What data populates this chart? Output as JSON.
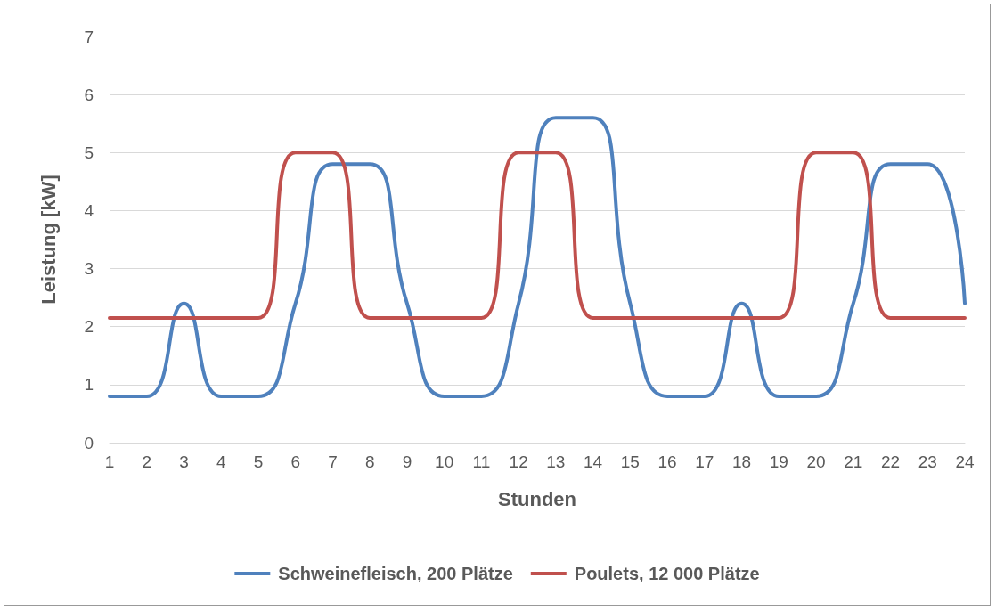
{
  "chart_data": {
    "type": "line",
    "xlabel": "Stunden",
    "ylabel": "Leistung [kW]",
    "x": [
      1,
      2,
      3,
      4,
      5,
      6,
      7,
      8,
      9,
      10,
      11,
      12,
      13,
      14,
      15,
      16,
      17,
      18,
      19,
      20,
      21,
      22,
      23,
      24
    ],
    "series": [
      {
        "name": "Schweinefleisch, 200 Plätze",
        "color": "#4f81bd",
        "values": [
          0.8,
          0.8,
          2.4,
          0.8,
          0.8,
          2.4,
          4.8,
          4.8,
          2.4,
          0.8,
          0.8,
          2.4,
          5.6,
          5.6,
          2.4,
          0.8,
          0.8,
          2.4,
          0.8,
          0.8,
          2.4,
          4.8,
          4.8,
          2.4
        ]
      },
      {
        "name": "Poulets, 12 000 Plätze",
        "color": "#c0504d",
        "values": [
          2.15,
          2.15,
          2.15,
          2.15,
          2.15,
          5.0,
          5.0,
          2.15,
          2.15,
          2.15,
          2.15,
          5.0,
          5.0,
          2.15,
          2.15,
          2.15,
          2.15,
          2.15,
          2.15,
          5.0,
          5.0,
          2.15,
          2.15,
          2.15
        ]
      }
    ],
    "xlim": [
      1,
      24
    ],
    "xticks": [
      1,
      2,
      3,
      4,
      5,
      6,
      7,
      8,
      9,
      10,
      11,
      12,
      13,
      14,
      15,
      16,
      17,
      18,
      19,
      20,
      21,
      22,
      23,
      24
    ],
    "ylim": [
      0,
      7
    ],
    "yticks": [
      0,
      1,
      2,
      3,
      4,
      5,
      6,
      7
    ],
    "grid": "y",
    "legend": "bottom",
    "marker": "none",
    "line_style": "solid"
  }
}
